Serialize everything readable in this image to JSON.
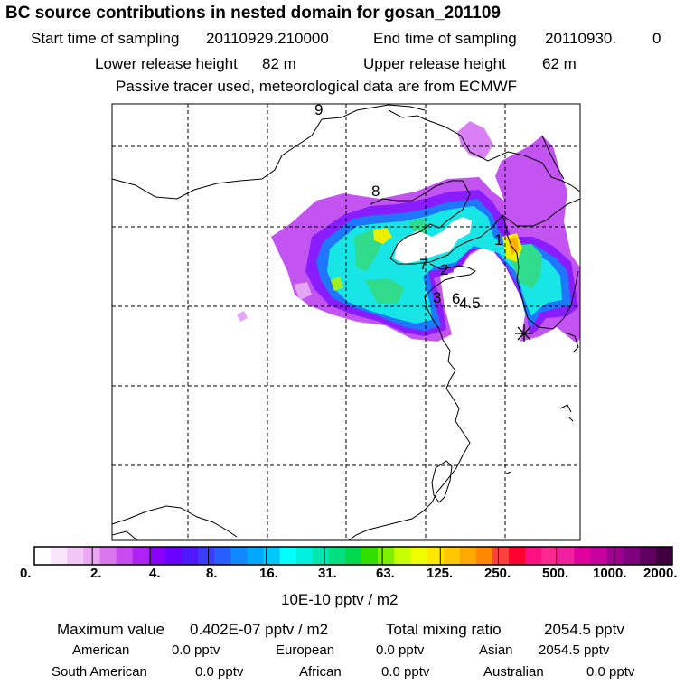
{
  "header": {
    "title": "BC  source contributions in nested domain for gosan_201109",
    "start_label": "Start time of sampling",
    "start_value": "20110929.210000",
    "end_label": "End time of sampling",
    "end_value": "20110930.",
    "end_extra": "0",
    "lower_label": "Lower release height",
    "lower_value": "82 m",
    "upper_label": "Upper release height",
    "upper_value": "62 m",
    "note": "Passive tracer used, meteorological data are from ECMWF"
  },
  "map": {
    "trajectory_markers": [
      "1",
      "2",
      "3",
      "4.5",
      "6",
      "7",
      "8",
      "9"
    ],
    "receptor_symbol": "gosan-receptor"
  },
  "colorbar": {
    "ticks": [
      "0.",
      "2.",
      "4.",
      "8.",
      "16.",
      "31.",
      "63.",
      "125.",
      "250.",
      "500.",
      "1000.",
      "2000."
    ],
    "unit": "10E-10 pptv / m2",
    "colors": [
      "#ffffff",
      "#fae6fb",
      "#f3c8f6",
      "#eaa6f3",
      "#dc78ee",
      "#c84cf0",
      "#b021f5",
      "#8a00ff",
      "#6a00ff",
      "#5018ff",
      "#3c3cff",
      "#2860ff",
      "#1088ff",
      "#00a8ff",
      "#00c8ff",
      "#00ffff",
      "#00f0e0",
      "#00e8b0",
      "#00e080",
      "#00d850",
      "#30e000",
      "#80f000",
      "#c8ff00",
      "#f0ff00",
      "#ffe800",
      "#ffc800",
      "#ffa800",
      "#ff8800",
      "#ff4040",
      "#ff0030",
      "#ff1080",
      "#ff2890",
      "#f020a0",
      "#e000a0",
      "#c800a0",
      "#a00090",
      "#800080",
      "#600060",
      "#400040"
    ]
  },
  "summary": {
    "max_label": "Maximum value",
    "max_value": "0.402E-07 pptv / m2",
    "total_label": "Total mixing ratio",
    "total_value": "2054.5 pptv",
    "american_label": "American",
    "american_value": "0.0 pptv",
    "european_label": "European",
    "european_value": "0.0 pptv",
    "asian_label": "Asian",
    "asian_value": "2054.5 pptv",
    "south_american_label": "South American",
    "south_american_value": "0.0 pptv",
    "african_label": "African",
    "african_value": "0.0 pptv",
    "australian_label": "Australian",
    "australian_value": "0.0 pptv"
  }
}
